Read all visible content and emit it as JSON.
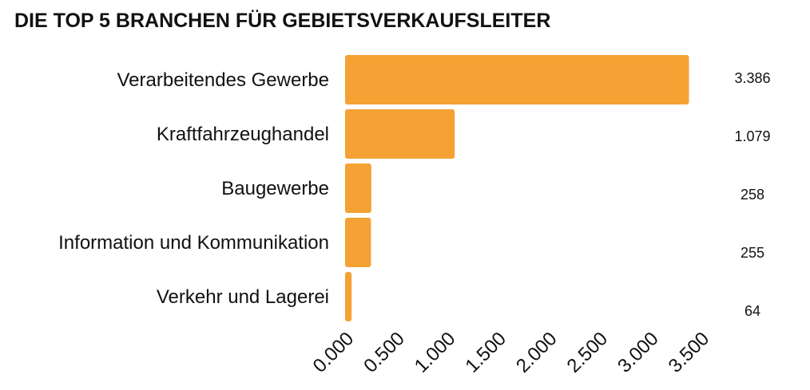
{
  "chart_data": {
    "type": "bar",
    "orientation": "horizontal",
    "title": "DIE TOP 5 BRANCHEN FÜR GEBIETSVERKAUFSLEITER",
    "categories": [
      "Verarbeitendes Gewerbe",
      "Kraftfahrzeughandel",
      "Baugewerbe",
      "Information und Kommunikation",
      "Verkehr und Lagerei"
    ],
    "values": [
      3386,
      1079,
      258,
      255,
      64
    ],
    "value_labels": [
      "3.386",
      "1.079",
      "258",
      "255",
      "64"
    ],
    "xlim": [
      0,
      3500
    ],
    "x_ticks": [
      "0.000",
      "0.500",
      "1.000",
      "1.500",
      "2.000",
      "2.500",
      "3.000",
      "3.500"
    ],
    "xlabel": "",
    "ylabel": "",
    "grid": false,
    "legend": "none",
    "bar_color": "#F4A233"
  }
}
